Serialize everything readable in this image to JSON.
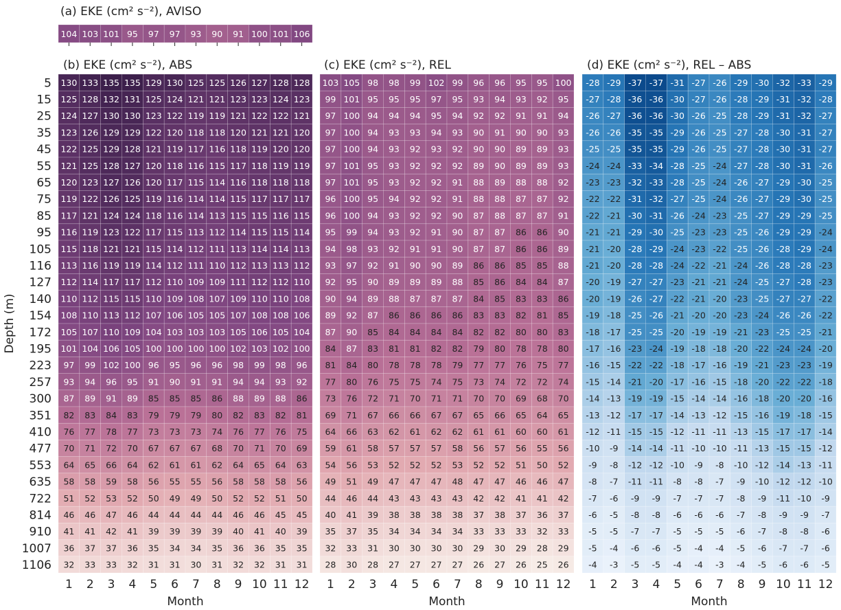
{
  "chart_data": [
    {
      "type": "heatmap",
      "title": "(a) EKE (cm² s⁻²), AVISO",
      "colors": [
        "#f7ece7",
        "#e2a9b0",
        "#b86f96",
        "#7f4681",
        "#3c1f4b"
      ],
      "values": [
        [
          104,
          103,
          101,
          95,
          97,
          97,
          93,
          90,
          91,
          100,
          101,
          106
        ]
      ]
    },
    {
      "type": "heatmap",
      "title": "(b) EKE (cm² s⁻²), ABS",
      "xlabel": "Month",
      "ylabel": "Depth (m)",
      "colors": [
        "#f7ece7",
        "#e2a9b0",
        "#b86f96",
        "#7f4681",
        "#3c1f4b"
      ],
      "categories": [
        1,
        2,
        3,
        4,
        5,
        6,
        7,
        8,
        9,
        10,
        11,
        12
      ],
      "rows": [
        5,
        15,
        25,
        35,
        45,
        55,
        65,
        75,
        85,
        95,
        105,
        116,
        127,
        140,
        154,
        172,
        195,
        223,
        257,
        300,
        351,
        410,
        477,
        553,
        635,
        722,
        814,
        910,
        1007,
        1106
      ],
      "values": [
        [
          130,
          133,
          135,
          135,
          129,
          130,
          125,
          125,
          126,
          127,
          128,
          128
        ],
        [
          125,
          128,
          132,
          131,
          125,
          124,
          121,
          121,
          123,
          123,
          124,
          123
        ],
        [
          124,
          127,
          130,
          130,
          123,
          122,
          119,
          119,
          121,
          122,
          122,
          121
        ],
        [
          123,
          126,
          129,
          129,
          122,
          120,
          118,
          118,
          120,
          121,
          121,
          120
        ],
        [
          122,
          125,
          129,
          128,
          121,
          119,
          117,
          116,
          118,
          119,
          120,
          120
        ],
        [
          121,
          125,
          128,
          127,
          120,
          118,
          116,
          115,
          117,
          118,
          119,
          119
        ],
        [
          120,
          123,
          127,
          126,
          120,
          117,
          115,
          114,
          116,
          118,
          118,
          118
        ],
        [
          119,
          122,
          126,
          125,
          119,
          116,
          114,
          114,
          115,
          117,
          117,
          117
        ],
        [
          117,
          121,
          124,
          124,
          118,
          116,
          114,
          113,
          115,
          115,
          116,
          115
        ],
        [
          116,
          119,
          123,
          122,
          117,
          115,
          113,
          112,
          114,
          115,
          115,
          114
        ],
        [
          115,
          118,
          121,
          121,
          115,
          114,
          112,
          111,
          113,
          114,
          114,
          113
        ],
        [
          113,
          116,
          119,
          119,
          114,
          112,
          111,
          110,
          112,
          113,
          113,
          112
        ],
        [
          112,
          114,
          117,
          117,
          112,
          110,
          109,
          109,
          111,
          112,
          112,
          110
        ],
        [
          110,
          112,
          115,
          115,
          110,
          109,
          108,
          107,
          109,
          110,
          110,
          108
        ],
        [
          108,
          110,
          113,
          112,
          107,
          106,
          105,
          105,
          107,
          108,
          108,
          106
        ],
        [
          105,
          107,
          110,
          109,
          104,
          103,
          103,
          103,
          105,
          106,
          105,
          104
        ],
        [
          101,
          104,
          106,
          105,
          100,
          100,
          100,
          100,
          102,
          103,
          102,
          100
        ],
        [
          97,
          99,
          102,
          100,
          96,
          95,
          96,
          96,
          98,
          99,
          98,
          96
        ],
        [
          93,
          94,
          96,
          95,
          91,
          90,
          91,
          91,
          94,
          94,
          93,
          92
        ],
        [
          87,
          89,
          91,
          89,
          85,
          85,
          85,
          86,
          88,
          89,
          88,
          86
        ],
        [
          82,
          83,
          84,
          83,
          79,
          79,
          79,
          80,
          82,
          83,
          82,
          81
        ],
        [
          76,
          77,
          78,
          77,
          73,
          73,
          73,
          74,
          76,
          77,
          76,
          75
        ],
        [
          70,
          71,
          72,
          70,
          67,
          67,
          67,
          68,
          70,
          71,
          70,
          69
        ],
        [
          64,
          65,
          66,
          64,
          62,
          61,
          61,
          62,
          64,
          65,
          64,
          63
        ],
        [
          58,
          58,
          59,
          58,
          56,
          55,
          55,
          56,
          58,
          58,
          58,
          56
        ],
        [
          51,
          52,
          53,
          52,
          50,
          49,
          49,
          50,
          52,
          52,
          51,
          50
        ],
        [
          46,
          46,
          47,
          46,
          44,
          44,
          44,
          44,
          46,
          46,
          45,
          45
        ],
        [
          41,
          41,
          42,
          41,
          39,
          39,
          39,
          39,
          40,
          41,
          40,
          39
        ],
        [
          36,
          37,
          37,
          36,
          35,
          34,
          34,
          35,
          36,
          36,
          35,
          35
        ],
        [
          32,
          33,
          33,
          32,
          31,
          31,
          30,
          31,
          32,
          32,
          31,
          31
        ]
      ]
    },
    {
      "type": "heatmap",
      "title": "(c) EKE (cm² s⁻²), REL",
      "xlabel": "Month",
      "colors": [
        "#f7ece7",
        "#e2a9b0",
        "#b86f96",
        "#7f4681",
        "#3c1f4b"
      ],
      "categories": [
        1,
        2,
        3,
        4,
        5,
        6,
        7,
        8,
        9,
        10,
        11,
        12
      ],
      "values": [
        [
          103,
          105,
          98,
          98,
          99,
          102,
          99,
          96,
          96,
          95,
          95,
          100
        ],
        [
          99,
          101,
          95,
          95,
          95,
          97,
          95,
          93,
          94,
          93,
          92,
          95
        ],
        [
          97,
          100,
          94,
          94,
          94,
          95,
          94,
          92,
          92,
          91,
          91,
          94
        ],
        [
          97,
          100,
          94,
          93,
          93,
          94,
          93,
          90,
          91,
          90,
          90,
          93
        ],
        [
          97,
          100,
          94,
          93,
          92,
          93,
          92,
          90,
          90,
          89,
          89,
          93
        ],
        [
          97,
          101,
          95,
          93,
          92,
          92,
          92,
          89,
          90,
          89,
          89,
          93
        ],
        [
          97,
          101,
          95,
          93,
          92,
          92,
          91,
          88,
          89,
          88,
          88,
          92
        ],
        [
          96,
          100,
          95,
          94,
          92,
          92,
          91,
          88,
          88,
          87,
          87,
          92
        ],
        [
          96,
          100,
          94,
          93,
          92,
          92,
          90,
          87,
          88,
          87,
          87,
          91
        ],
        [
          95,
          99,
          94,
          93,
          92,
          91,
          90,
          87,
          87,
          86,
          86,
          90
        ],
        [
          94,
          98,
          93,
          92,
          91,
          91,
          90,
          87,
          87,
          86,
          86,
          89
        ],
        [
          93,
          97,
          92,
          91,
          90,
          90,
          89,
          86,
          86,
          85,
          85,
          88
        ],
        [
          92,
          95,
          90,
          89,
          89,
          89,
          88,
          85,
          86,
          84,
          84,
          87
        ],
        [
          90,
          94,
          89,
          88,
          87,
          87,
          87,
          84,
          85,
          83,
          83,
          86
        ],
        [
          89,
          92,
          87,
          86,
          86,
          86,
          86,
          83,
          83,
          82,
          81,
          85
        ],
        [
          87,
          90,
          85,
          84,
          84,
          84,
          84,
          82,
          82,
          80,
          80,
          83
        ],
        [
          84,
          87,
          83,
          81,
          81,
          82,
          82,
          79,
          80,
          78,
          78,
          80
        ],
        [
          81,
          84,
          80,
          78,
          78,
          78,
          79,
          77,
          77,
          76,
          75,
          77
        ],
        [
          77,
          80,
          76,
          75,
          75,
          74,
          75,
          73,
          74,
          72,
          72,
          74
        ],
        [
          73,
          76,
          72,
          71,
          70,
          71,
          71,
          70,
          70,
          69,
          68,
          70
        ],
        [
          69,
          71,
          67,
          66,
          66,
          67,
          67,
          65,
          66,
          65,
          64,
          65
        ],
        [
          64,
          66,
          63,
          62,
          61,
          62,
          62,
          61,
          61,
          60,
          60,
          61
        ],
        [
          59,
          61,
          58,
          57,
          57,
          57,
          58,
          56,
          57,
          56,
          55,
          56
        ],
        [
          54,
          56,
          53,
          52,
          52,
          52,
          53,
          52,
          52,
          51,
          50,
          52
        ],
        [
          49,
          51,
          49,
          47,
          47,
          47,
          48,
          47,
          47,
          46,
          46,
          47
        ],
        [
          44,
          46,
          44,
          43,
          43,
          43,
          43,
          42,
          42,
          41,
          41,
          42
        ],
        [
          40,
          41,
          39,
          38,
          38,
          38,
          38,
          37,
          38,
          37,
          36,
          37
        ],
        [
          35,
          37,
          35,
          34,
          34,
          34,
          34,
          33,
          33,
          33,
          32,
          33
        ],
        [
          32,
          33,
          31,
          30,
          30,
          30,
          30,
          29,
          30,
          29,
          28,
          29
        ],
        [
          28,
          30,
          28,
          27,
          27,
          27,
          27,
          26,
          27,
          26,
          25,
          26
        ]
      ]
    },
    {
      "type": "heatmap",
      "title": "(d) EKE (cm² s⁻²), REL – ABS",
      "xlabel": "Month",
      "colors": [
        "#0b4a8c",
        "#2878b8",
        "#6aaed6",
        "#c6dbef",
        "#eaf2fb"
      ],
      "categories": [
        1,
        2,
        3,
        4,
        5,
        6,
        7,
        8,
        9,
        10,
        11,
        12
      ],
      "values": [
        [
          -28,
          -29,
          -37,
          -37,
          -31,
          -27,
          -26,
          -29,
          -30,
          -32,
          -33,
          -29
        ],
        [
          -27,
          -28,
          -36,
          -36,
          -30,
          -27,
          -26,
          -28,
          -29,
          -31,
          -32,
          -28
        ],
        [
          -26,
          -27,
          -36,
          -36,
          -30,
          -26,
          -25,
          -28,
          -29,
          -31,
          -32,
          -27
        ],
        [
          -26,
          -26,
          -35,
          -35,
          -29,
          -26,
          -25,
          -27,
          -28,
          -30,
          -31,
          -27
        ],
        [
          -25,
          -25,
          -35,
          -35,
          -29,
          -26,
          -25,
          -27,
          -28,
          -30,
          -31,
          -27
        ],
        [
          -24,
          -24,
          -33,
          -34,
          -28,
          -25,
          -24,
          -27,
          -28,
          -30,
          -31,
          -26
        ],
        [
          -23,
          -23,
          -32,
          -33,
          -28,
          -25,
          -24,
          -26,
          -27,
          -29,
          -30,
          -25
        ],
        [
          -22,
          -22,
          -31,
          -32,
          -27,
          -25,
          -24,
          -26,
          -27,
          -29,
          -30,
          -25
        ],
        [
          -22,
          -21,
          -30,
          -31,
          -26,
          -24,
          -23,
          -25,
          -27,
          -29,
          -29,
          -25
        ],
        [
          -21,
          -21,
          -29,
          -30,
          -25,
          -23,
          -23,
          -25,
          -26,
          -29,
          -29,
          -24
        ],
        [
          -21,
          -20,
          -28,
          -29,
          -24,
          -23,
          -22,
          -25,
          -26,
          -28,
          -29,
          -24
        ],
        [
          -21,
          -20,
          -28,
          -28,
          -24,
          -22,
          -21,
          -24,
          -26,
          -28,
          -28,
          -23
        ],
        [
          -20,
          -19,
          -27,
          -27,
          -23,
          -21,
          -21,
          -24,
          -25,
          -27,
          -28,
          -23
        ],
        [
          -20,
          -19,
          -26,
          -27,
          -22,
          -21,
          -20,
          -23,
          -25,
          -27,
          -27,
          -22
        ],
        [
          -19,
          -18,
          -25,
          -26,
          -21,
          -20,
          -20,
          -23,
          -24,
          -26,
          -26,
          -22
        ],
        [
          -18,
          -17,
          -25,
          -25,
          -20,
          -19,
          -19,
          -21,
          -23,
          -25,
          -25,
          -21
        ],
        [
          -17,
          -16,
          -23,
          -24,
          -19,
          -18,
          -18,
          -20,
          -22,
          -24,
          -24,
          -20
        ],
        [
          -16,
          -15,
          -22,
          -22,
          -18,
          -17,
          -16,
          -19,
          -21,
          -23,
          -23,
          -19
        ],
        [
          -15,
          -14,
          -21,
          -20,
          -17,
          -16,
          -15,
          -18,
          -20,
          -22,
          -22,
          -18
        ],
        [
          -14,
          -13,
          -19,
          -19,
          -15,
          -14,
          -14,
          -16,
          -18,
          -20,
          -20,
          -16
        ],
        [
          -13,
          -12,
          -17,
          -17,
          -14,
          -13,
          -12,
          -15,
          -16,
          -19,
          -18,
          -15
        ],
        [
          -12,
          -11,
          -15,
          -15,
          -12,
          -11,
          -11,
          -13,
          -15,
          -17,
          -17,
          -14
        ],
        [
          -10,
          -9,
          -14,
          -14,
          -11,
          -10,
          -10,
          -11,
          -13,
          -15,
          -15,
          -12
        ],
        [
          -9,
          -8,
          -12,
          -12,
          -10,
          -9,
          -8,
          -10,
          -12,
          -14,
          -13,
          -11
        ],
        [
          -8,
          -7,
          -11,
          -11,
          -8,
          -8,
          -7,
          -9,
          -10,
          -12,
          -12,
          -10
        ],
        [
          -7,
          -6,
          -9,
          -9,
          -7,
          -7,
          -7,
          -8,
          -9,
          -11,
          -10,
          -9
        ],
        [
          -6,
          -5,
          -8,
          -8,
          -6,
          -6,
          -6,
          -7,
          -8,
          -9,
          -9,
          -7
        ],
        [
          -5,
          -5,
          -7,
          -7,
          -5,
          -5,
          -5,
          -6,
          -7,
          -8,
          -8,
          -6
        ],
        [
          -5,
          -4,
          -6,
          -6,
          -5,
          -4,
          -4,
          -5,
          -6,
          -7,
          -7,
          -6
        ],
        [
          -4,
          -3,
          -5,
          -5,
          -4,
          -4,
          -3,
          -4,
          -5,
          -6,
          -6,
          -5
        ]
      ]
    }
  ]
}
